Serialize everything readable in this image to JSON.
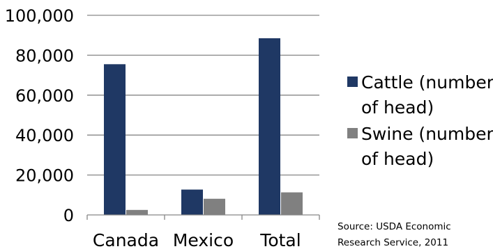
{
  "chart_data": {
    "type": "bar",
    "categories": [
      "Canada",
      "Mexico",
      "Total"
    ],
    "series": [
      {
        "name": "Cattle (number of head)",
        "name_lines": [
          "Cattle (number",
          "of head)"
        ],
        "values": [
          75500,
          12700,
          88500
        ],
        "color": "#1f3864"
      },
      {
        "name": "Swine (number of head)",
        "name_lines": [
          "Swine (number",
          "of head)"
        ],
        "values": [
          2500,
          8100,
          11300
        ],
        "color": "#808080"
      }
    ],
    "ylim": [
      0,
      100000
    ],
    "yticks": [
      0,
      20000,
      40000,
      60000,
      80000,
      100000
    ],
    "ytick_labels": [
      "0",
      "20,000",
      "40,000",
      "60,000",
      "80,000",
      "100,000"
    ],
    "grid": true,
    "legend_position": "right",
    "title": "",
    "xlabel": "",
    "ylabel": ""
  },
  "source_note": {
    "lines": [
      "Source: USDA Economic",
      "Research Service, 2011"
    ]
  }
}
